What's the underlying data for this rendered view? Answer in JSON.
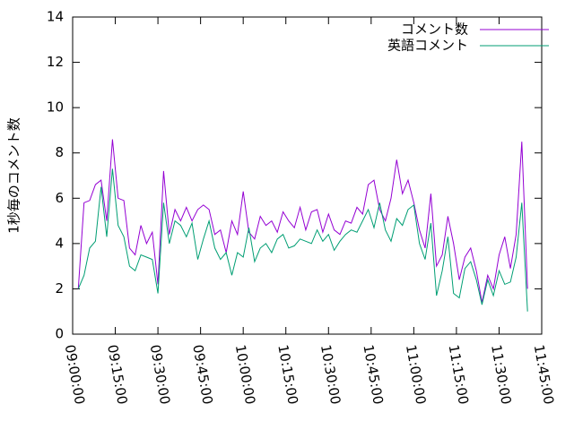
{
  "chart_data": {
    "type": "line",
    "ylabel": "1秒毎のコメント数",
    "x": [
      "09:02:00",
      "09:04:00",
      "09:06:00",
      "09:08:00",
      "09:10:00",
      "09:12:00",
      "09:14:00",
      "09:16:00",
      "09:18:00",
      "09:20:00",
      "09:22:00",
      "09:24:00",
      "09:26:00",
      "09:28:00",
      "09:30:00",
      "09:32:00",
      "09:34:00",
      "09:36:00",
      "09:38:00",
      "09:40:00",
      "09:42:00",
      "09:44:00",
      "09:46:00",
      "09:48:00",
      "09:50:00",
      "09:52:00",
      "09:54:00",
      "09:56:00",
      "09:58:00",
      "10:00:00",
      "10:02:00",
      "10:04:00",
      "10:06:00",
      "10:08:00",
      "10:10:00",
      "10:12:00",
      "10:14:00",
      "10:16:00",
      "10:18:00",
      "10:20:00",
      "10:22:00",
      "10:24:00",
      "10:26:00",
      "10:28:00",
      "10:30:00",
      "10:32:00",
      "10:34:00",
      "10:36:00",
      "10:38:00",
      "10:40:00",
      "10:42:00",
      "10:44:00",
      "10:46:00",
      "10:48:00",
      "10:50:00",
      "10:52:00",
      "10:54:00",
      "10:56:00",
      "10:58:00",
      "11:00:00",
      "11:02:00",
      "11:04:00",
      "11:06:00",
      "11:08:00",
      "11:10:00",
      "11:12:00",
      "11:14:00",
      "11:16:00",
      "11:18:00",
      "11:20:00",
      "11:22:00",
      "11:24:00",
      "11:26:00",
      "11:28:00",
      "11:30:00",
      "11:32:00",
      "11:34:00",
      "11:36:00",
      "11:38:00",
      "11:40:00"
    ],
    "series": [
      {
        "name": "コメント数",
        "color": "#9400d3",
        "values": [
          2.0,
          5.8,
          5.9,
          6.6,
          6.8,
          5.0,
          8.6,
          6.0,
          5.9,
          3.8,
          3.5,
          4.8,
          4.0,
          4.5,
          2.2,
          7.2,
          4.4,
          5.5,
          5.0,
          5.6,
          5.0,
          5.5,
          5.7,
          5.5,
          4.4,
          4.6,
          3.6,
          5.0,
          4.4,
          6.3,
          4.5,
          4.2,
          5.2,
          4.8,
          5.0,
          4.5,
          5.4,
          5.0,
          4.7,
          5.6,
          4.6,
          5.4,
          5.5,
          4.5,
          5.3,
          4.6,
          4.4,
          5.0,
          4.9,
          5.6,
          5.3,
          6.6,
          6.8,
          5.5,
          5.0,
          6.0,
          7.7,
          6.2,
          6.8,
          5.8,
          4.6,
          3.8,
          6.2,
          3.0,
          3.5,
          5.2,
          4.0,
          2.4,
          3.4,
          3.8,
          2.8,
          1.4,
          2.6,
          2.0,
          3.5,
          4.3,
          2.9,
          4.4,
          8.5,
          2.0
        ]
      },
      {
        "name": "英語コメント",
        "color": "#009e73",
        "values": [
          2.0,
          2.6,
          3.8,
          4.1,
          6.5,
          4.3,
          7.3,
          4.8,
          4.3,
          3.0,
          2.8,
          3.5,
          3.4,
          3.3,
          1.8,
          5.8,
          4.0,
          5.0,
          4.8,
          4.3,
          4.9,
          3.3,
          4.2,
          5.0,
          3.8,
          3.3,
          3.6,
          2.6,
          3.6,
          3.4,
          4.7,
          3.2,
          3.8,
          4.0,
          3.6,
          4.2,
          4.4,
          3.8,
          3.9,
          4.2,
          4.1,
          4.0,
          4.6,
          4.1,
          4.4,
          3.7,
          4.1,
          4.4,
          4.6,
          4.5,
          5.0,
          5.5,
          4.7,
          5.8,
          4.6,
          4.1,
          5.1,
          4.8,
          5.5,
          5.7,
          4.0,
          3.3,
          4.9,
          1.7,
          2.8,
          4.3,
          1.8,
          1.6,
          2.9,
          3.2,
          2.4,
          1.3,
          2.4,
          1.7,
          2.8,
          2.2,
          2.3,
          3.4,
          5.8,
          1.0
        ]
      }
    ],
    "xlim": [
      "09:00:00",
      "11:45:00"
    ],
    "xticks": [
      "09:00:00",
      "09:15:00",
      "09:30:00",
      "09:45:00",
      "10:00:00",
      "10:15:00",
      "10:30:00",
      "10:45:00",
      "11:00:00",
      "11:15:00",
      "11:30:00",
      "11:45:00"
    ],
    "ylim": [
      0,
      14
    ],
    "yticks": [
      0,
      2,
      4,
      6,
      8,
      10,
      12,
      14
    ],
    "legend": "top-right"
  }
}
